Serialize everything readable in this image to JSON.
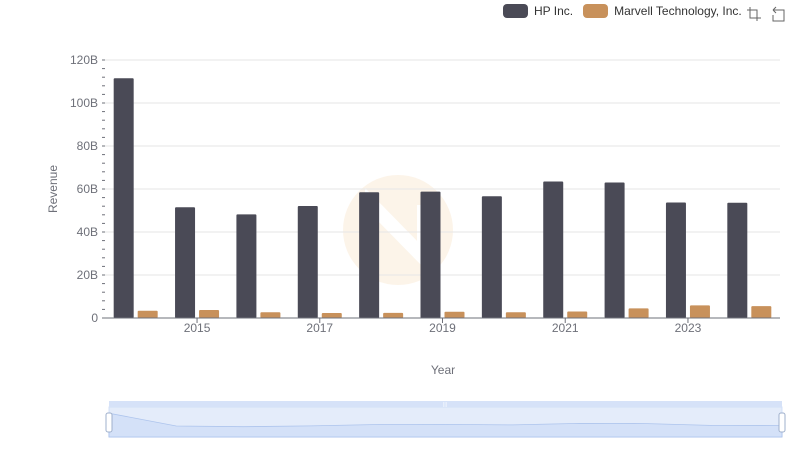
{
  "legend": {
    "items": [
      {
        "label": "HP Inc.",
        "color": "#4a4a56"
      },
      {
        "label": "Marvell Technology, Inc.",
        "color": "#c8915b"
      }
    ]
  },
  "toolbox": {
    "zoom_icon": "zoom-select-icon",
    "reset_icon": "zoom-reset-icon"
  },
  "chart_data": {
    "type": "bar",
    "title": "",
    "xlabel": "Year",
    "ylabel": "Revenue",
    "ylim": [
      0,
      120000000000
    ],
    "yticks": [
      "0",
      "20B",
      "40B",
      "60B",
      "80B",
      "100B",
      "120B"
    ],
    "categories": [
      "2014",
      "2015",
      "2016",
      "2017",
      "2018",
      "2019",
      "2020",
      "2021",
      "2022",
      "2023",
      "2024"
    ],
    "xtick_labels": [
      "2015",
      "2017",
      "2019",
      "2021",
      "2023"
    ],
    "series": [
      {
        "name": "HP Inc.",
        "color": "#4a4a56",
        "values": [
          111500000000,
          51500000000,
          48200000000,
          52100000000,
          58500000000,
          58800000000,
          56600000000,
          63500000000,
          63000000000,
          53700000000,
          53600000000
        ]
      },
      {
        "name": "Marvell Technology, Inc.",
        "color": "#c8915b",
        "values": [
          3400000000,
          3700000000,
          2700000000,
          2300000000,
          2400000000,
          2900000000,
          2700000000,
          3000000000,
          4500000000,
          5900000000,
          5500000000
        ]
      }
    ],
    "grid": true,
    "legend_position": "top-right"
  },
  "datazoom": {
    "range": [
      0,
      100
    ]
  }
}
